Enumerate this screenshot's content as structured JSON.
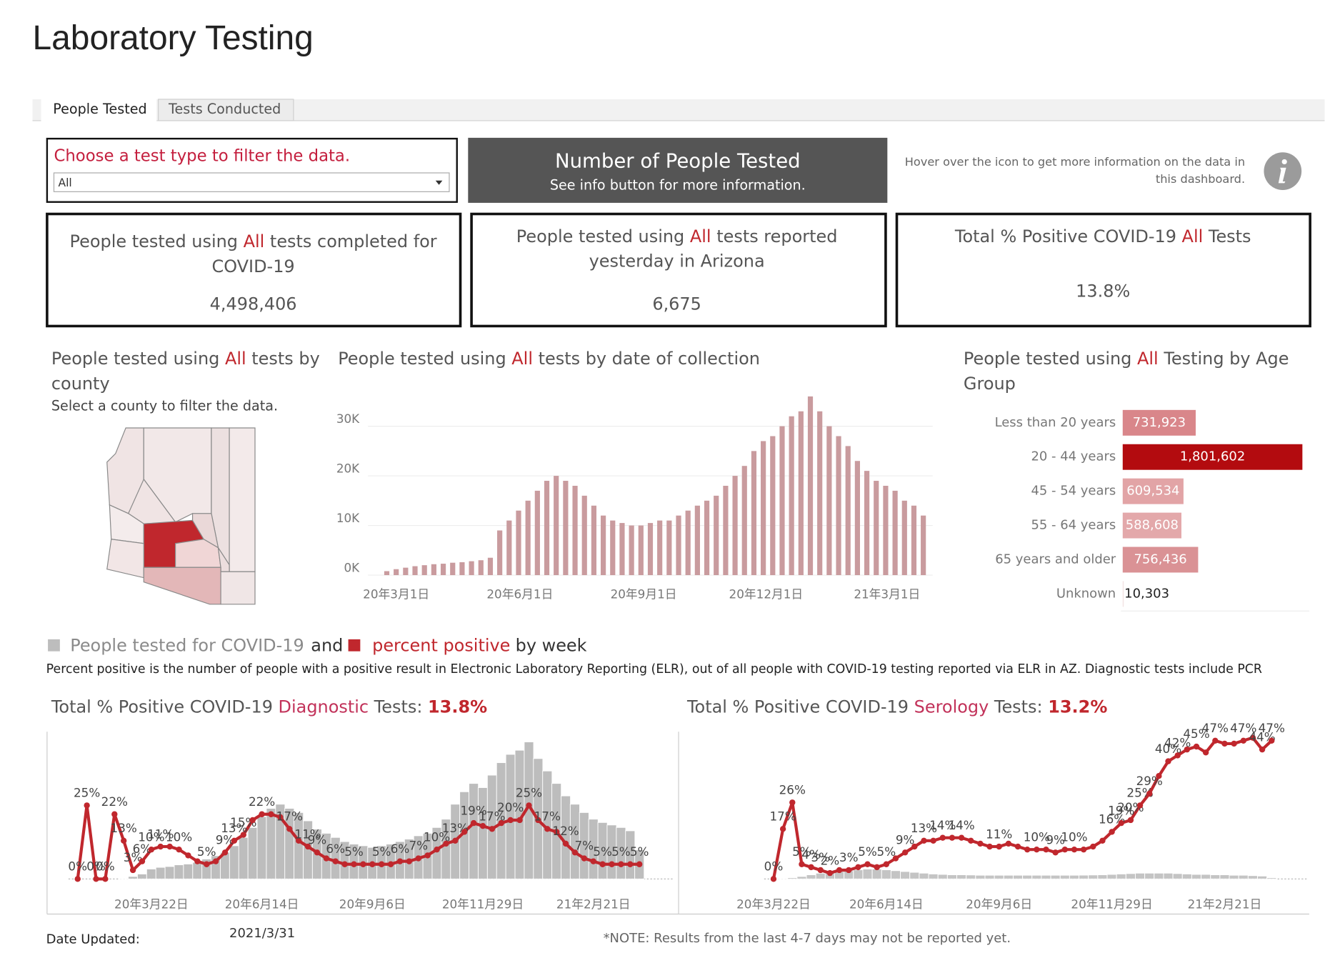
{
  "header": {
    "title": "Laboratory Testing"
  },
  "tabs": [
    "People Tested",
    "Tests Conducted"
  ],
  "filter": {
    "label": "Choose a test type to filter the data.",
    "selected": "All"
  },
  "banner": {
    "title": "Number of People Tested",
    "subtitle": "See info button for more information."
  },
  "info": {
    "line1": "Hover over the icon to get more information on the data in",
    "line2": "this dashboard."
  },
  "kpis": [
    {
      "prefix": "People tested using ",
      "filter": "All",
      "suffix": " tests completed for",
      "line2": "COVID-19",
      "value": "4,498,406"
    },
    {
      "prefix": "People tested using ",
      "filter": "All",
      "suffix": " tests reported",
      "line2": "yesterday in Arizona",
      "value": "6,675"
    },
    {
      "prefix": "Total % Positive COVID-19 ",
      "filter": "All",
      "suffix": " Tests",
      "value": "13.8%"
    }
  ],
  "county": {
    "prefix": "People tested using ",
    "filter": "All",
    "suffix": " tests by",
    "line2": "county",
    "subtitle": "Select a county to filter the data."
  },
  "weekly": {
    "and": "and",
    "suffix": "by week",
    "note": "Percent positive is the number of people with a positive result in Electronic Laboratory Reporting (ELR), out of all people with COVID-19 testing reported via ELR in AZ. Diagnostic tests include PCR"
  },
  "footer": {
    "date_label": "Date Updated:",
    "date": "2021/3/31",
    "note": "*NOTE: Results from the last 4-7 days may not be reported yet."
  },
  "chart_data": [
    {
      "type": "bar",
      "title_prefix": "People tested using ",
      "title_filter": "All",
      "title_suffix": " tests by date of collection",
      "x": [
        "2020-02-23",
        "2020-03-01",
        "2020-03-08",
        "2020-03-15",
        "2020-03-22",
        "2020-03-29",
        "2020-04-05",
        "2020-04-12",
        "2020-04-19",
        "2020-04-26",
        "2020-05-03",
        "2020-05-10",
        "2020-05-17",
        "2020-05-24",
        "2020-05-31",
        "2020-06-07",
        "2020-06-14",
        "2020-06-21",
        "2020-06-28",
        "2020-07-05",
        "2020-07-12",
        "2020-07-19",
        "2020-07-26",
        "2020-08-02",
        "2020-08-09",
        "2020-08-16",
        "2020-08-23",
        "2020-08-30",
        "2020-09-06",
        "2020-09-13",
        "2020-09-20",
        "2020-09-27",
        "2020-10-04",
        "2020-10-11",
        "2020-10-18",
        "2020-10-25",
        "2020-11-01",
        "2020-11-08",
        "2020-11-15",
        "2020-11-22",
        "2020-11-29",
        "2020-12-06",
        "2020-12-13",
        "2020-12-20",
        "2020-12-27",
        "2021-01-03",
        "2021-01-10",
        "2021-01-17",
        "2021-01-24",
        "2021-01-31",
        "2021-02-07",
        "2021-02-14",
        "2021-02-21",
        "2021-02-28",
        "2021-03-07",
        "2021-03-14",
        "2021-03-21",
        "2021-03-28"
      ],
      "values": [
        800,
        1200,
        1500,
        1800,
        2000,
        2200,
        2300,
        2500,
        2600,
        2800,
        3000,
        3500,
        9000,
        11000,
        13000,
        15000,
        17000,
        19000,
        20000,
        19000,
        18000,
        16000,
        14000,
        12000,
        11000,
        10500,
        10000,
        10000,
        10500,
        11000,
        11000,
        12000,
        13000,
        14000,
        15000,
        16000,
        18000,
        20000,
        22000,
        25000,
        27000,
        28000,
        30000,
        32000,
        33000,
        36000,
        33000,
        30000,
        28000,
        26000,
        23000,
        21000,
        19000,
        18000,
        17000,
        15000,
        14000,
        12000
      ],
      "color": "#c99b9e",
      "grid": true,
      "xlim": [
        "2020-02-09",
        "2021-04-04"
      ],
      "xticks": [
        {
          "value": "2020-03-01",
          "label": "20年3月1日"
        },
        {
          "value": "2020-06-01",
          "label": "20年6月1日"
        },
        {
          "value": "2020-09-01",
          "label": "20年9月1日"
        },
        {
          "value": "2020-12-01",
          "label": "20年12月1日"
        },
        {
          "value": "2021-03-01",
          "label": "21年3月1日"
        }
      ],
      "ylim": [
        0,
        40000
      ],
      "yticks": [
        {
          "value": 0,
          "label": "0K"
        },
        {
          "value": 10000,
          "label": "10K"
        },
        {
          "value": 20000,
          "label": "20K"
        },
        {
          "value": 30000,
          "label": "30K"
        }
      ]
    },
    {
      "type": "hbar",
      "title_prefix": "People tested using ",
      "title_filter": "All",
      "title_suffix": " Testing by Age",
      "title_line2": "Group",
      "categories": [
        "Less than 20 years",
        "20 - 44 years",
        "45 - 54 years",
        "55 - 64 years",
        "65 years and older",
        "Unknown"
      ],
      "values": [
        731923,
        1801602,
        609534,
        588608,
        756436,
        10303
      ],
      "value_labels": [
        "731,923",
        "1,801,602",
        "609,534",
        "588,608",
        "756,436",
        "10,303"
      ],
      "colors": [
        "#d9868a",
        "#b30b0f",
        "#e2a4a6",
        "#e3a8aa",
        "#da9295",
        "#f2e3e3"
      ]
    },
    {
      "type": "combo",
      "title_prefix": "Total % Positive COVID-19 ",
      "title_filter": "Diagnostic",
      "title_suffix": " Tests: ",
      "title_value": "13.8%",
      "x": [
        "2020-01-26",
        "2020-02-02",
        "2020-02-09",
        "2020-02-16",
        "2020-02-23",
        "2020-03-01",
        "2020-03-08",
        "2020-03-15",
        "2020-03-22",
        "2020-03-29",
        "2020-04-05",
        "2020-04-12",
        "2020-04-19",
        "2020-04-26",
        "2020-05-03",
        "2020-05-10",
        "2020-05-17",
        "2020-05-24",
        "2020-05-31",
        "2020-06-07",
        "2020-06-14",
        "2020-06-21",
        "2020-06-28",
        "2020-07-05",
        "2020-07-12",
        "2020-07-19",
        "2020-07-26",
        "2020-08-02",
        "2020-08-09",
        "2020-08-16",
        "2020-08-23",
        "2020-08-30",
        "2020-09-06",
        "2020-09-13",
        "2020-09-20",
        "2020-09-27",
        "2020-10-04",
        "2020-10-11",
        "2020-10-18",
        "2020-10-25",
        "2020-11-01",
        "2020-11-08",
        "2020-11-15",
        "2020-11-22",
        "2020-11-29",
        "2020-12-06",
        "2020-12-13",
        "2020-12-20",
        "2020-12-27",
        "2021-01-03",
        "2021-01-10",
        "2021-01-17",
        "2021-01-24",
        "2021-01-31",
        "2021-02-07",
        "2021-02-14",
        "2021-02-21",
        "2021-02-28",
        "2021-03-07",
        "2021-03-14",
        "2021-03-21",
        "2021-03-28"
      ],
      "xlim": [
        "2020-01-19",
        "2021-04-04"
      ],
      "xticks": [
        {
          "value": "2020-03-22",
          "label": "20年3月22日"
        },
        {
          "value": "2020-06-14",
          "label": "20年6月14日"
        },
        {
          "value": "2020-09-06",
          "label": "20年9月6日"
        },
        {
          "value": "2020-11-29",
          "label": "20年11月29日"
        },
        {
          "value": "2021-02-21",
          "label": "21年2月21日"
        }
      ],
      "ylim": [
        0,
        48
      ],
      "y2lim": [
        0,
        170000
      ],
      "series": [
        {
          "name": "People tested for COVID-19",
          "color": "#bdbdbd",
          "axis": "y2",
          "values": [
            0,
            0,
            0,
            0,
            0,
            800,
            3000,
            6000,
            12000,
            14000,
            15000,
            17000,
            18000,
            20000,
            24000,
            28000,
            32000,
            40000,
            50000,
            62000,
            75000,
            85000,
            90000,
            85000,
            80000,
            70000,
            60000,
            55000,
            50000,
            45000,
            42000,
            40000,
            38000,
            40000,
            42000,
            45000,
            48000,
            52000,
            55000,
            62000,
            72000,
            90000,
            105000,
            115000,
            110000,
            125000,
            140000,
            150000,
            155000,
            165000,
            145000,
            130000,
            115000,
            100000,
            90000,
            80000,
            72000,
            68000,
            65000,
            62000,
            58000,
            35000
          ]
        },
        {
          "name": "percent positive",
          "color": "#c0272d",
          "values": [
            0,
            25,
            0,
            0,
            22,
            13,
            3,
            6,
            10,
            11,
            11,
            10,
            8,
            6,
            5,
            6,
            9,
            13,
            15,
            20,
            22,
            22,
            21,
            17,
            13,
            11,
            9,
            7,
            6,
            5,
            5,
            5,
            5,
            5,
            5,
            6,
            6,
            7,
            8,
            10,
            12,
            13,
            16,
            19,
            18,
            17,
            19,
            20,
            20,
            25,
            20,
            17,
            16,
            12,
            9,
            7,
            6,
            5,
            5,
            5,
            5,
            5
          ],
          "value_labels": [
            "0%",
            "25%",
            "0%",
            "0%",
            "22%",
            "13%",
            "3%",
            "6%",
            "10%",
            "11%",
            null,
            "10%",
            null,
            null,
            "5%",
            null,
            "9%",
            "13%",
            "15%",
            null,
            "22%",
            null,
            null,
            "17%",
            null,
            "11%",
            "9%",
            null,
            "6%",
            null,
            "5%",
            null,
            null,
            "5%",
            null,
            "6%",
            null,
            "7%",
            null,
            "10%",
            null,
            "13%",
            null,
            "19%",
            null,
            "17%",
            null,
            "20%",
            null,
            "25%",
            null,
            "17%",
            null,
            "12%",
            null,
            "7%",
            null,
            "5%",
            null,
            "5%",
            null,
            "5%"
          ]
        }
      ]
    },
    {
      "type": "combo",
      "title_prefix": "Total % Positive COVID-19 ",
      "title_filter": "Serology",
      "title_suffix": " Tests: ",
      "title_value": "13.2%",
      "x": [
        "2020-03-22",
        "2020-03-29",
        "2020-04-05",
        "2020-04-12",
        "2020-04-19",
        "2020-04-26",
        "2020-05-03",
        "2020-05-10",
        "2020-05-17",
        "2020-05-24",
        "2020-05-31",
        "2020-06-07",
        "2020-06-14",
        "2020-06-21",
        "2020-06-28",
        "2020-07-05",
        "2020-07-12",
        "2020-07-19",
        "2020-07-26",
        "2020-08-02",
        "2020-08-09",
        "2020-08-16",
        "2020-08-23",
        "2020-08-30",
        "2020-09-06",
        "2020-09-13",
        "2020-09-20",
        "2020-09-27",
        "2020-10-04",
        "2020-10-11",
        "2020-10-18",
        "2020-10-25",
        "2020-11-01",
        "2020-11-08",
        "2020-11-15",
        "2020-11-22",
        "2020-11-29",
        "2020-12-06",
        "2020-12-13",
        "2020-12-20",
        "2020-12-27",
        "2021-01-03",
        "2021-01-10",
        "2021-01-17",
        "2021-01-24",
        "2021-01-31",
        "2021-02-07",
        "2021-02-14",
        "2021-02-21",
        "2021-02-28",
        "2021-03-07",
        "2021-03-14",
        "2021-03-21",
        "2021-03-28"
      ],
      "xlim": [
        "2020-03-15",
        "2021-04-04"
      ],
      "xticks": [
        {
          "value": "2020-03-22",
          "label": "20年3月22日"
        },
        {
          "value": "2020-06-14",
          "label": "20年6月14日"
        },
        {
          "value": "2020-09-06",
          "label": "20年9月6日"
        },
        {
          "value": "2020-11-29",
          "label": "20年11月29日"
        },
        {
          "value": "2021-02-21",
          "label": "21年2月21日"
        }
      ],
      "ylim": [
        0,
        48
      ],
      "y2lim": [
        0,
        170000
      ],
      "series": [
        {
          "color": "#c4c4c4",
          "axis": "y2",
          "values": [
            0,
            500,
            1500,
            3000,
            5000,
            7000,
            8000,
            9000,
            10000,
            11000,
            12000,
            12000,
            11000,
            10000,
            9000,
            8000,
            7000,
            6000,
            5500,
            5000,
            5000,
            4800,
            4500,
            4500,
            4500,
            4500,
            4500,
            4500,
            4500,
            4500,
            4500,
            4500,
            4500,
            4600,
            4800,
            5000,
            5500,
            6000,
            6500,
            7000,
            7000,
            7000,
            7000,
            6500,
            6000,
            5500,
            5500,
            5000,
            5000,
            4500,
            4500,
            4000,
            3500,
            1500
          ]
        },
        {
          "color": "#c0272d",
          "values": [
            0,
            17,
            26,
            5,
            4,
            3,
            2,
            3,
            3,
            4,
            5,
            4,
            5,
            7,
            9,
            11,
            13,
            13,
            14,
            14,
            14,
            13,
            12,
            11,
            11,
            12,
            11,
            10,
            10,
            10,
            9,
            10,
            10,
            10,
            11,
            13,
            16,
            19,
            20,
            25,
            29,
            35,
            40,
            42,
            44,
            45,
            43,
            47,
            46,
            46,
            47,
            48,
            44,
            47
          ],
          "value_labels": [
            "0%",
            "17%",
            "26%",
            "5%",
            "4%",
            "3%",
            "2%",
            null,
            "3%",
            null,
            "5%",
            null,
            "5%",
            null,
            "9%",
            null,
            "13%",
            null,
            "14%",
            null,
            "14%",
            null,
            null,
            null,
            "11%",
            null,
            null,
            null,
            "10%",
            null,
            "9%",
            null,
            "10%",
            null,
            null,
            null,
            "16%",
            "19%",
            "20%",
            "25%",
            "29%",
            null,
            "40%",
            "42%",
            null,
            "45%",
            null,
            "47%",
            null,
            null,
            "47%",
            null,
            "44%",
            "47%"
          ]
        }
      ]
    }
  ]
}
